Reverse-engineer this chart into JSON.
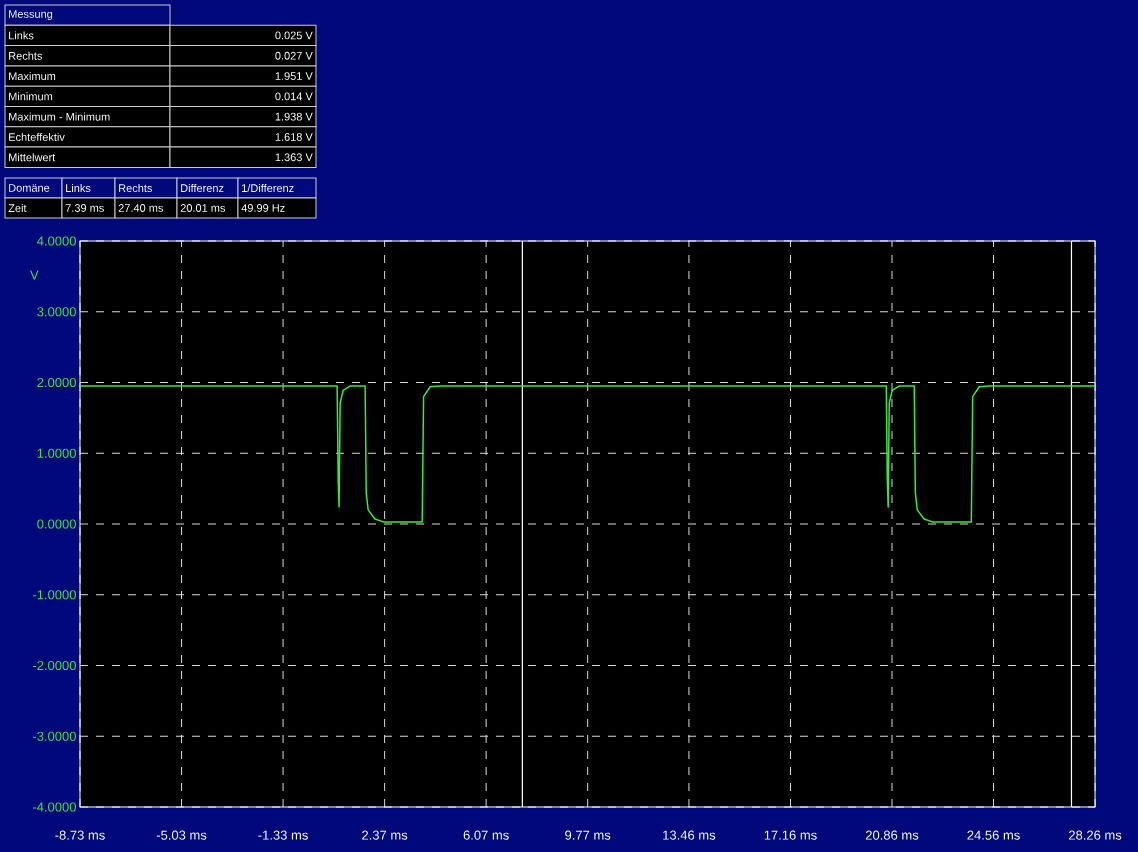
{
  "chart_data": {
    "type": "line",
    "ylabel": "V",
    "x": [
      -8.73,
      0.64,
      0.68,
      0.71,
      0.75,
      0.86,
      1.11,
      1.66,
      1.7,
      1.77,
      2.02,
      2.32,
      3.74,
      3.79,
      4.03,
      4.39,
      20.65,
      20.69,
      20.72,
      20.76,
      20.87,
      21.12,
      21.67,
      21.71,
      21.78,
      22.03,
      22.33,
      23.75,
      23.8,
      24.04,
      24.4,
      28.26
    ],
    "series": [
      {
        "color": "#33ee33",
        "values": [
          1.95,
          1.95,
          0.6,
          0.24,
          1.71,
          1.89,
          1.95,
          1.95,
          0.44,
          0.2,
          0.07,
          0.03,
          0.03,
          1.8,
          1.94,
          1.95,
          1.95,
          0.6,
          0.24,
          1.71,
          1.89,
          1.95,
          1.95,
          0.44,
          0.2,
          0.07,
          0.03,
          0.03,
          1.8,
          1.94,
          1.95,
          1.95
        ]
      }
    ],
    "xlim": [
      -8.73,
      28.26
    ],
    "xticks": [
      {
        "value": -8.73,
        "label": "-8.73 ms"
      },
      {
        "value": -5.03,
        "label": "-5.03 ms"
      },
      {
        "value": -1.33,
        "label": "-1.33 ms"
      },
      {
        "value": 2.37,
        "label": "2.37 ms"
      },
      {
        "value": 6.07,
        "label": "6.07 ms"
      },
      {
        "value": 9.77,
        "label": "9.77 ms"
      },
      {
        "value": 13.46,
        "label": "13.46 ms"
      },
      {
        "value": 17.16,
        "label": "17.16 ms"
      },
      {
        "value": 20.86,
        "label": "20.86 ms"
      },
      {
        "value": 24.56,
        "label": "24.56 ms"
      },
      {
        "value": 28.26,
        "label": "28.26 ms"
      }
    ],
    "ylim": [
      -4,
      4
    ],
    "yticks": [
      {
        "value": -4,
        "label": "-4.0000"
      },
      {
        "value": -3,
        "label": "-3.0000"
      },
      {
        "value": -2,
        "label": "-2.0000"
      },
      {
        "value": -1,
        "label": "-1.0000"
      },
      {
        "value": 0,
        "label": "0.0000"
      },
      {
        "value": 1,
        "label": "1.0000"
      },
      {
        "value": 2,
        "label": "2.0000"
      },
      {
        "value": 3,
        "label": "3.0000"
      },
      {
        "value": 4,
        "label": "4.0000"
      }
    ],
    "grid": true,
    "marker": "none",
    "line_style": "solid",
    "ref_lines": [
      {
        "axis": "x",
        "value": 7.39,
        "color": "#ffffff"
      },
      {
        "axis": "x",
        "value": 27.4,
        "color": "#ffffff"
      }
    ],
    "annotations": [
      "Messung",
      "Links",
      "0.025 V",
      "Rechts",
      "0.027 V",
      "Maximum",
      "1.951 V",
      "Minimum",
      "0.014 V",
      "Maximum - Minimum",
      "1.938 V",
      "Echteffektiv",
      "1.618 V",
      "Mittelwert",
      "1.363 V",
      "Domäne",
      "Links",
      "Rechts",
      "Differenz",
      "1/Differenz",
      "Zeit",
      "7.39 ms",
      "27.40 ms",
      "20.01 ms",
      "49.99 Hz"
    ]
  }
}
